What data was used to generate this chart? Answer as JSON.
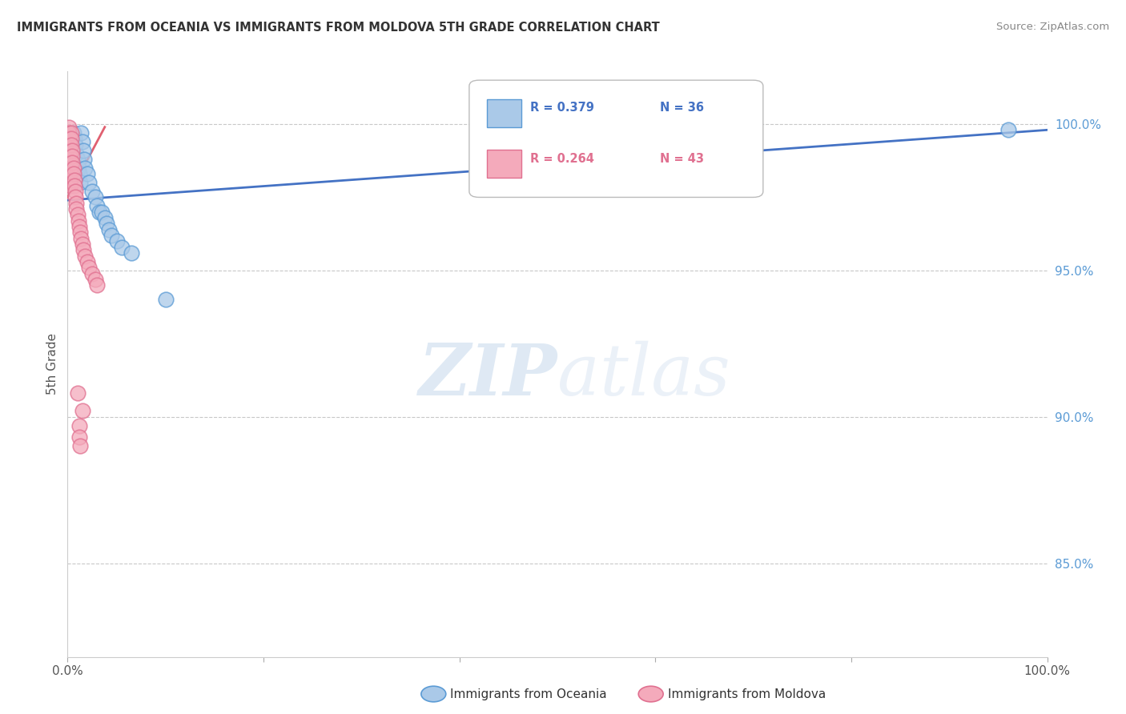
{
  "title": "IMMIGRANTS FROM OCEANIA VS IMMIGRANTS FROM MOLDOVA 5TH GRADE CORRELATION CHART",
  "source": "Source: ZipAtlas.com",
  "ylabel": "5th Grade",
  "xlim": [
    0.0,
    1.0
  ],
  "ylim": [
    0.818,
    1.018
  ],
  "y_ticks": [
    0.85,
    0.9,
    0.95,
    1.0
  ],
  "y_tick_labels": [
    "85.0%",
    "90.0%",
    "95.0%",
    "100.0%"
  ],
  "legend_blue_label": "Immigrants from Oceania",
  "legend_pink_label": "Immigrants from Moldova",
  "blue_color": "#AAC9E8",
  "pink_color": "#F4AABB",
  "blue_edge_color": "#5B9BD5",
  "pink_edge_color": "#E07090",
  "blue_line_color": "#4472C4",
  "pink_line_color": "#E06070",
  "watermark_text": "ZIPatlas",
  "background_color": "#FFFFFF",
  "grid_color": "#C8C8C8",
  "title_color": "#333333",
  "source_color": "#888888",
  "ytick_color": "#5B9BD5",
  "blue_x": [
    0.001,
    0.002,
    0.003,
    0.004,
    0.005,
    0.005,
    0.006,
    0.007,
    0.008,
    0.009,
    0.01,
    0.011,
    0.012,
    0.013,
    0.014,
    0.015,
    0.016,
    0.017,
    0.018,
    0.02,
    0.022,
    0.025,
    0.028,
    0.03,
    0.032,
    0.035,
    0.038,
    0.04,
    0.042,
    0.045,
    0.05,
    0.055,
    0.065,
    0.1,
    0.55,
    0.96
  ],
  "blue_y": [
    0.993,
    0.99,
    0.995,
    0.988,
    0.986,
    0.983,
    0.997,
    0.995,
    0.993,
    0.99,
    0.988,
    0.985,
    0.983,
    0.98,
    0.997,
    0.994,
    0.991,
    0.988,
    0.985,
    0.983,
    0.98,
    0.977,
    0.975,
    0.972,
    0.97,
    0.97,
    0.968,
    0.966,
    0.964,
    0.962,
    0.96,
    0.958,
    0.956,
    0.94,
    0.985,
    0.998
  ],
  "pink_x": [
    0.001,
    0.001,
    0.001,
    0.002,
    0.002,
    0.002,
    0.002,
    0.003,
    0.003,
    0.003,
    0.003,
    0.004,
    0.004,
    0.004,
    0.005,
    0.005,
    0.005,
    0.006,
    0.006,
    0.007,
    0.007,
    0.008,
    0.008,
    0.009,
    0.009,
    0.01,
    0.011,
    0.012,
    0.013,
    0.014,
    0.015,
    0.016,
    0.018,
    0.02,
    0.022,
    0.025,
    0.028,
    0.03,
    0.01,
    0.015,
    0.012,
    0.012,
    0.013
  ],
  "pink_y": [
    0.999,
    0.997,
    0.995,
    0.993,
    0.991,
    0.989,
    0.987,
    0.985,
    0.983,
    0.981,
    0.979,
    0.997,
    0.995,
    0.993,
    0.991,
    0.989,
    0.987,
    0.985,
    0.983,
    0.981,
    0.979,
    0.977,
    0.975,
    0.973,
    0.971,
    0.969,
    0.967,
    0.965,
    0.963,
    0.961,
    0.959,
    0.957,
    0.955,
    0.953,
    0.951,
    0.949,
    0.947,
    0.945,
    0.908,
    0.902,
    0.897,
    0.893,
    0.89
  ],
  "blue_trend_x": [
    0.0,
    1.0
  ],
  "blue_trend_y": [
    0.974,
    0.998
  ],
  "pink_trend_x": [
    0.0,
    0.038
  ],
  "pink_trend_y": [
    0.975,
    0.999
  ]
}
